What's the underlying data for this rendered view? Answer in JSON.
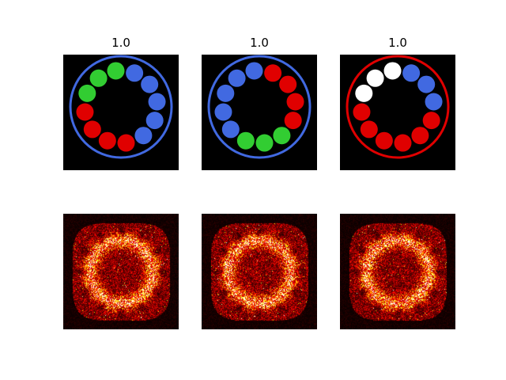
{
  "figure": {
    "panels": [
      {
        "title": "1.0",
        "ring_color": "#4169e1",
        "beads": [
          "#4169e1",
          "#4169e1",
          "#4169e1",
          "#4169e1",
          "#4169e1",
          "#e00000",
          "#e00000",
          "#e00000",
          "#e00000",
          "#32cd32",
          "#32cd32",
          "#32cd32"
        ]
      },
      {
        "title": "1.0",
        "ring_color": "#4169e1",
        "beads": [
          "#e00000",
          "#e00000",
          "#e00000",
          "#e00000",
          "#32cd32",
          "#32cd32",
          "#32cd32",
          "#4169e1",
          "#4169e1",
          "#4169e1",
          "#4169e1",
          "#4169e1"
        ]
      },
      {
        "title": "1.0",
        "ring_color": "#e00000",
        "beads": [
          "#4169e1",
          "#4169e1",
          "#4169e1",
          "#e00000",
          "#e00000",
          "#e00000",
          "#e00000",
          "#e00000",
          "#e00000",
          "#ffffff",
          "#ffffff",
          "#ffffff"
        ]
      }
    ],
    "heatmaps": [
      {
        "colormap": "hot",
        "seed": 11
      },
      {
        "colormap": "hot",
        "seed": 23
      },
      {
        "colormap": "hot",
        "seed": 37
      }
    ]
  }
}
